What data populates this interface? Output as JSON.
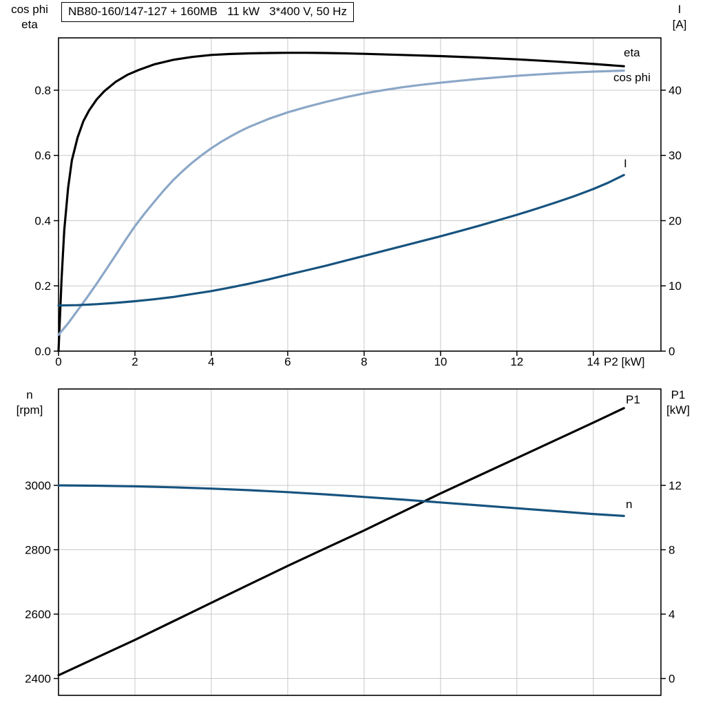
{
  "title_box": {
    "text": "NB80-160/147-127 + 160MB   11 kW   3*400 V, 50 Hz"
  },
  "colors": {
    "black": "#000000",
    "light_blue": "#8ba7c7",
    "dark_blue": "#17537f",
    "grid": "#c8c8c8",
    "frame": "#000000",
    "background": "#ffffff"
  },
  "chart_data": [
    {
      "id": "motor-efficiency-chart",
      "type": "line",
      "x_axis": {
        "label": "P2 [kW]",
        "min": 0,
        "max": 15.77,
        "tick_values": [
          0,
          2,
          4,
          6,
          8,
          10,
          12,
          14
        ],
        "tick_labels": [
          "0",
          "2",
          "4",
          "6",
          "8",
          "10",
          "12",
          "14"
        ]
      },
      "y_left": {
        "labels": [
          "cos phi",
          "eta"
        ],
        "min": 0,
        "max": 0.9604,
        "tick_values": [
          0,
          0.2,
          0.4,
          0.6,
          0.8
        ],
        "tick_labels": [
          "0.0",
          "0.2",
          "0.4",
          "0.6",
          "0.8"
        ]
      },
      "y_right": {
        "labels": [
          "I",
          "[A]"
        ],
        "min": 0,
        "max": 48.02,
        "tick_values": [
          0,
          10,
          20,
          30,
          40
        ],
        "tick_labels": [
          "0",
          "10",
          "20",
          "30",
          "40"
        ]
      },
      "series": [
        {
          "name": "eta",
          "label": "eta",
          "axis": "left",
          "color": "black",
          "points": [
            [
              0,
              0
            ],
            [
              0.08,
              0.22
            ],
            [
              0.15,
              0.37
            ],
            [
              0.25,
              0.5
            ],
            [
              0.35,
              0.585
            ],
            [
              0.5,
              0.655
            ],
            [
              0.65,
              0.705
            ],
            [
              0.8,
              0.738
            ],
            [
              1.0,
              0.772
            ],
            [
              1.2,
              0.797
            ],
            [
              1.5,
              0.826
            ],
            [
              1.8,
              0.847
            ],
            [
              2.1,
              0.862
            ],
            [
              2.5,
              0.879
            ],
            [
              3.0,
              0.893
            ],
            [
              3.5,
              0.902
            ],
            [
              4.0,
              0.908
            ],
            [
              4.5,
              0.911
            ],
            [
              5.0,
              0.913
            ],
            [
              5.5,
              0.914
            ],
            [
              6.0,
              0.9145
            ],
            [
              6.5,
              0.9145
            ],
            [
              7.0,
              0.914
            ],
            [
              7.5,
              0.913
            ],
            [
              8.0,
              0.9115
            ],
            [
              9.0,
              0.908
            ],
            [
              10.0,
              0.9045
            ],
            [
              11.0,
              0.9
            ],
            [
              12.0,
              0.8945
            ],
            [
              13.0,
              0.888
            ],
            [
              14.0,
              0.8805
            ],
            [
              14.8,
              0.8735
            ]
          ]
        },
        {
          "name": "cos phi",
          "label": "cos phi",
          "axis": "left",
          "color": "light_blue",
          "points": [
            [
              0,
              0.05
            ],
            [
              0.25,
              0.085
            ],
            [
              0.5,
              0.125
            ],
            [
              0.75,
              0.165
            ],
            [
              1.0,
              0.207
            ],
            [
              1.25,
              0.251
            ],
            [
              1.5,
              0.295
            ],
            [
              1.75,
              0.34
            ],
            [
              2.0,
              0.383
            ],
            [
              2.25,
              0.421
            ],
            [
              2.5,
              0.457
            ],
            [
              2.75,
              0.492
            ],
            [
              3.0,
              0.524
            ],
            [
              3.25,
              0.552
            ],
            [
              3.5,
              0.578
            ],
            [
              3.75,
              0.601
            ],
            [
              4.0,
              0.622
            ],
            [
              4.25,
              0.641
            ],
            [
              4.5,
              0.658
            ],
            [
              4.75,
              0.674
            ],
            [
              5.0,
              0.688
            ],
            [
              5.5,
              0.712
            ],
            [
              6.0,
              0.732
            ],
            [
              6.5,
              0.749
            ],
            [
              7.0,
              0.764
            ],
            [
              7.5,
              0.778
            ],
            [
              8.0,
              0.79
            ],
            [
              8.5,
              0.8
            ],
            [
              9.0,
              0.809
            ],
            [
              9.5,
              0.8165
            ],
            [
              10.0,
              0.823
            ],
            [
              10.5,
              0.829
            ],
            [
              11.0,
              0.8345
            ],
            [
              11.5,
              0.8395
            ],
            [
              12.0,
              0.844
            ],
            [
              12.5,
              0.848
            ],
            [
              13.0,
              0.8515
            ],
            [
              13.5,
              0.8545
            ],
            [
              14.0,
              0.857
            ],
            [
              14.8,
              0.86
            ]
          ]
        },
        {
          "name": "I",
          "label": "I",
          "axis": "right",
          "color": "dark_blue",
          "points": [
            [
              0,
              7.0
            ],
            [
              0.5,
              7.05
            ],
            [
              1.0,
              7.2
            ],
            [
              1.5,
              7.4
            ],
            [
              2.0,
              7.65
            ],
            [
              2.5,
              7.95
            ],
            [
              3.0,
              8.3
            ],
            [
              3.5,
              8.75
            ],
            [
              4.0,
              9.2
            ],
            [
              4.5,
              9.75
            ],
            [
              5.0,
              10.35
            ],
            [
              5.5,
              11.0
            ],
            [
              6.0,
              11.7
            ],
            [
              6.5,
              12.4
            ],
            [
              7.0,
              13.1
            ],
            [
              7.5,
              13.85
            ],
            [
              8.0,
              14.6
            ],
            [
              8.5,
              15.35
            ],
            [
              9.0,
              16.1
            ],
            [
              9.5,
              16.85
            ],
            [
              10.0,
              17.6
            ],
            [
              10.5,
              18.4
            ],
            [
              11.0,
              19.2
            ],
            [
              11.5,
              20.05
            ],
            [
              12.0,
              20.9
            ],
            [
              12.5,
              21.8
            ],
            [
              13.0,
              22.75
            ],
            [
              13.5,
              23.75
            ],
            [
              14.0,
              24.85
            ],
            [
              14.4,
              25.85
            ],
            [
              14.8,
              27.0
            ]
          ]
        }
      ]
    },
    {
      "id": "motor-speed-power-chart",
      "type": "line",
      "x_axis": {
        "label": "",
        "min": 0,
        "max": 15.77,
        "tick_values": [
          0,
          2,
          4,
          6,
          8,
          10,
          12,
          14
        ],
        "tick_labels": null
      },
      "y_left": {
        "labels": [
          "n",
          "[rpm]"
        ],
        "min": 2347.6,
        "max": 3299.5,
        "tick_values": [
          2400,
          2600,
          2800,
          3000
        ],
        "tick_labels": [
          "2400",
          "2600",
          "2800",
          "3000"
        ]
      },
      "y_right": {
        "labels": [
          "P1",
          "[kW]"
        ],
        "min": -1.05,
        "max": 17.99,
        "tick_values": [
          0,
          4,
          8,
          12
        ],
        "tick_labels": [
          "0",
          "4",
          "8",
          "12"
        ]
      },
      "series": [
        {
          "name": "P1",
          "label": "P1",
          "axis": "right",
          "color": "black",
          "points": [
            [
              0,
              0.2
            ],
            [
              1,
              1.3
            ],
            [
              2,
              2.4
            ],
            [
              3,
              3.55
            ],
            [
              4,
              4.7
            ],
            [
              5,
              5.85
            ],
            [
              6,
              7.0
            ],
            [
              7,
              8.1
            ],
            [
              8,
              9.2
            ],
            [
              9,
              10.35
            ],
            [
              10,
              11.5
            ],
            [
              11,
              12.6
            ],
            [
              12,
              13.7
            ],
            [
              13,
              14.8
            ],
            [
              14,
              15.9
            ],
            [
              14.8,
              16.8
            ]
          ]
        },
        {
          "name": "n",
          "label": "n",
          "axis": "left",
          "color": "dark_blue",
          "points": [
            [
              0,
              3000
            ],
            [
              1,
              2999
            ],
            [
              2,
              2997
            ],
            [
              3,
              2994
            ],
            [
              4,
              2990
            ],
            [
              5,
              2985
            ],
            [
              6,
              2979
            ],
            [
              7,
              2972
            ],
            [
              8,
              2964
            ],
            [
              9,
              2956
            ],
            [
              10,
              2947
            ],
            [
              11,
              2938
            ],
            [
              12,
              2929
            ],
            [
              13,
              2920
            ],
            [
              14,
              2911
            ],
            [
              14.8,
              2905
            ]
          ]
        }
      ]
    }
  ]
}
